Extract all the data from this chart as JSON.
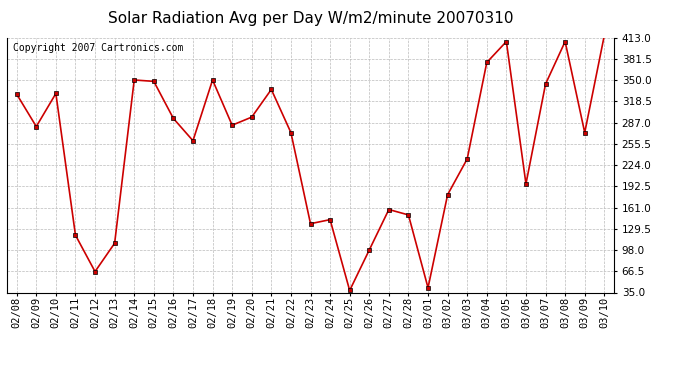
{
  "title": "Solar Radiation Avg per Day W/m2/minute 20070310",
  "copyright_text": "Copyright 2007 Cartronics.com",
  "labels": [
    "02/08",
    "02/09",
    "02/10",
    "02/11",
    "02/12",
    "02/13",
    "02/14",
    "02/15",
    "02/16",
    "02/17",
    "02/18",
    "02/19",
    "02/20",
    "02/21",
    "02/22",
    "02/23",
    "02/24",
    "02/25",
    "02/26",
    "02/27",
    "02/28",
    "03/01",
    "03/02",
    "03/03",
    "03/04",
    "03/05",
    "03/06",
    "03/07",
    "03/08",
    "03/09",
    "03/10"
  ],
  "values": [
    329,
    281,
    330,
    120,
    66,
    108,
    350,
    348,
    293,
    260,
    350,
    283,
    295,
    336,
    272,
    137,
    143,
    38,
    98,
    158,
    150,
    42,
    180,
    233,
    376,
    407,
    196,
    344,
    407,
    272,
    416
  ],
  "line_color": "#cc0000",
  "marker_color": "#cc0000",
  "bg_color": "#ffffff",
  "plot_bg_color": "#ffffff",
  "grid_color": "#bbbbbb",
  "title_fontsize": 11,
  "copyright_fontsize": 7,
  "tick_fontsize": 7.5,
  "ylim": [
    35.0,
    413.0
  ],
  "yticks": [
    35.0,
    66.5,
    98.0,
    129.5,
    161.0,
    192.5,
    224.0,
    255.5,
    287.0,
    318.5,
    350.0,
    381.5,
    413.0
  ]
}
